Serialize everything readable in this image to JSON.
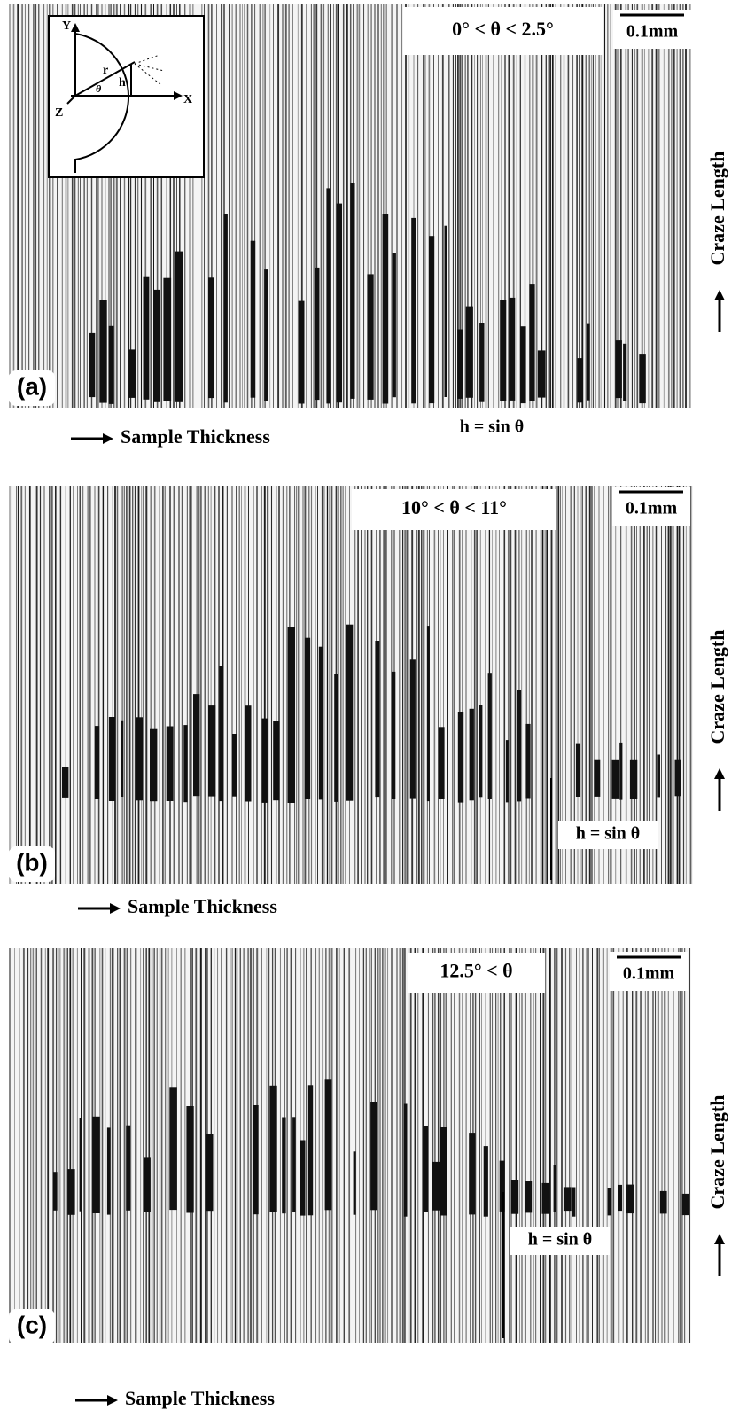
{
  "panels": [
    {
      "label": "(a)",
      "angle": "0° < θ < 2.5°",
      "scale": "0.1mm",
      "x_axis": "Sample Thickness",
      "y_axis": "Craze Length",
      "annotation": "h = sin θ"
    },
    {
      "label": "(b)",
      "angle": "10° < θ < 11°",
      "scale": "0.1mm",
      "x_axis": "Sample Thickness",
      "y_axis": "Craze Length",
      "annotation": "h = sin θ"
    },
    {
      "label": "(c)",
      "angle": "12.5° < θ",
      "scale": "0.1mm",
      "x_axis": "Sample Thickness",
      "y_axis": "Craze Length",
      "annotation": "h = sin θ"
    }
  ],
  "inset": {
    "y_axis": "Y",
    "x_axis": "X",
    "z_axis": "Z",
    "radius": "r",
    "height": "h",
    "angle": "θ"
  }
}
